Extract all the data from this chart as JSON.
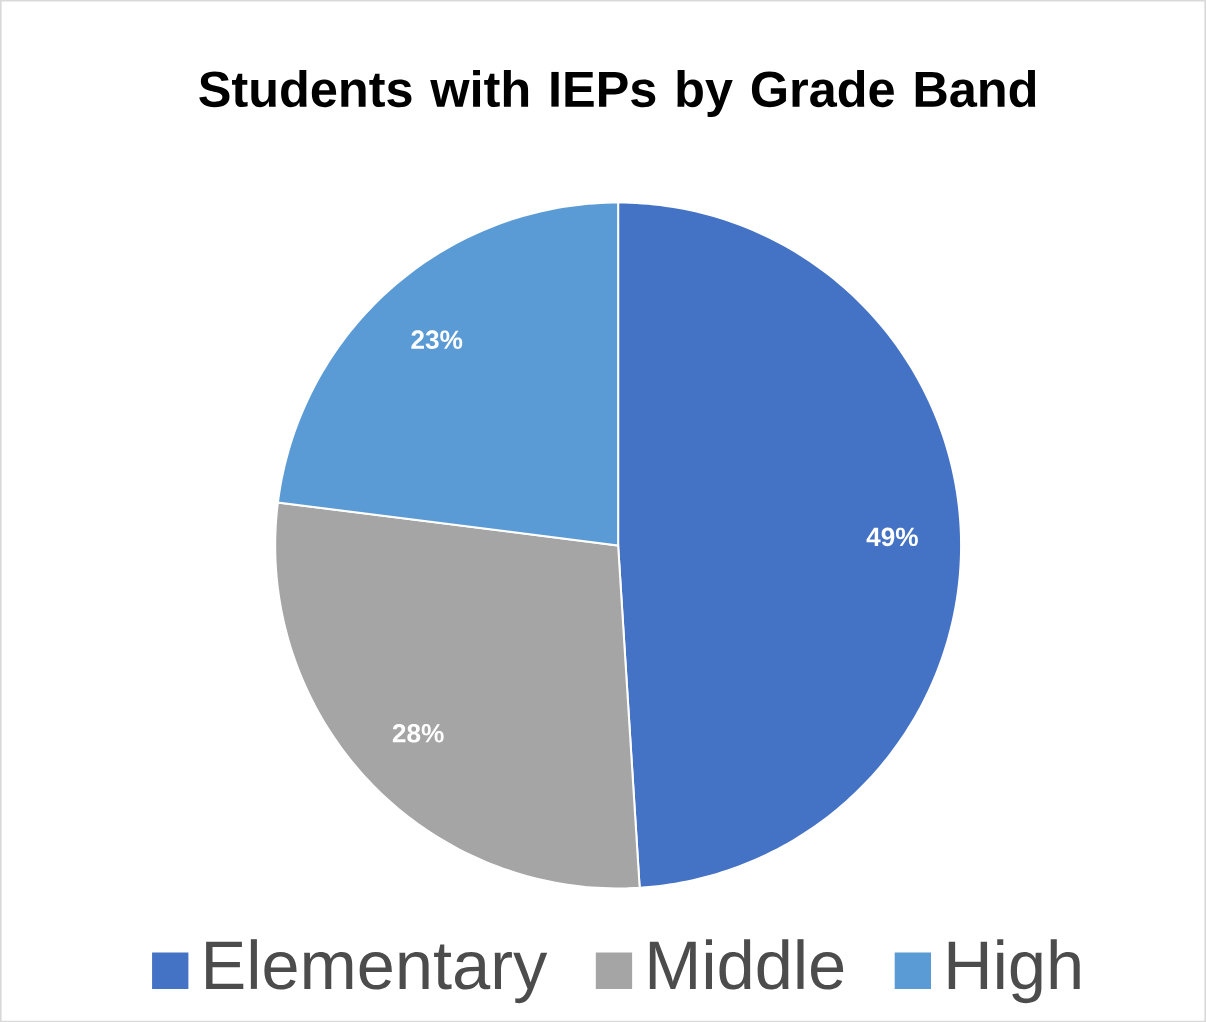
{
  "chart_data": {
    "type": "pie",
    "title": "Students with IEPs by Grade Band",
    "categories": [
      "Elementary",
      "Middle",
      "High"
    ],
    "values": [
      49,
      28,
      23
    ],
    "value_labels": [
      "49%",
      "28%",
      "23%"
    ],
    "colors": [
      "#4472c4",
      "#a5a5a5",
      "#5b9bd5"
    ],
    "legend": "bottom"
  }
}
